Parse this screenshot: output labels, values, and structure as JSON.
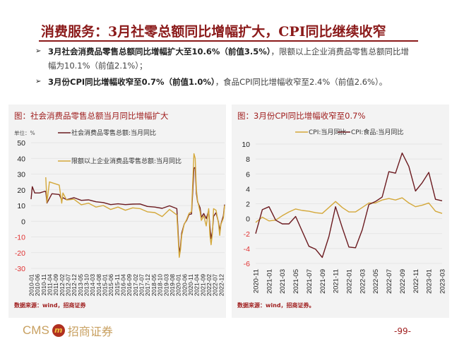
{
  "title": "消费服务：3月社零总额同比增幅扩大，CPI同比继续收窄",
  "bullets": [
    {
      "bold": "3月社会消费品零售总额同比增幅扩大至10.6%（前值3.5%）",
      "rest": "，限额以上企业消费品零售总额同比增幅为10.1%（前值2.1%）；"
    },
    {
      "bold": "3月份CPI同比增幅收窄至0.7%（前值1.0%）",
      "rest": "，食品CPI同比增幅收窄至2.4%（前值2.6%）。"
    }
  ],
  "bullet_marker": "➢",
  "colors": {
    "dark_red": "#6b1a1f",
    "gold": "#d4a83a",
    "title_red": "#8b1a1a"
  },
  "footer": {
    "logo_en": "CMS",
    "logo_mark": "m",
    "logo_cn": "招商证券",
    "page": "-99-"
  },
  "chart_data": [
    {
      "type": "line",
      "title": "图：社会消费品零售总额当月同比增幅扩大",
      "unit_label": "单位：%",
      "source": "数据来源：wind，招商证券",
      "ylim": [
        -30,
        50
      ],
      "yticks": [
        50,
        40,
        30,
        20,
        10,
        0,
        -10,
        -20,
        -30
      ],
      "grid": true,
      "legend": "top",
      "xlim": [
        "2010-01",
        "2023-03"
      ],
      "xticks": [
        "2010-01",
        "2010-06",
        "2010-11",
        "2011-04",
        "2011-09",
        "2012-02",
        "2012-07",
        "2012-12",
        "2013-05",
        "2013-10",
        "2014-03",
        "2014-08",
        "2015-01",
        "2015-06",
        "2015-11",
        "2016-04",
        "2016-09",
        "2017-02",
        "2017-07",
        "2017-12",
        "2018-05",
        "2018-10",
        "2019-03",
        "2019-08",
        "2020-01",
        "2020-06",
        "2020-11",
        "2021-04",
        "2021-09",
        "2022-02",
        "2022-07",
        "2022-12"
      ],
      "series": [
        {
          "name": "社会消费品零售总额:当月同比",
          "color": "#6b1a1f",
          "x": [
            "2010-01",
            "2010-02",
            "2010-04",
            "2010-08",
            "2010-12",
            "2011-01",
            "2011-02",
            "2011-06",
            "2011-12",
            "2012-02",
            "2012-03",
            "2012-06",
            "2012-12",
            "2013-06",
            "2013-12",
            "2014-06",
            "2014-12",
            "2015-06",
            "2015-12",
            "2016-06",
            "2016-12",
            "2017-06",
            "2017-12",
            "2018-06",
            "2018-12",
            "2019-06",
            "2019-12",
            "2020-02",
            "2020-03",
            "2020-04",
            "2020-06",
            "2020-08",
            "2020-10",
            "2020-12",
            "2021-02",
            "2021-03",
            "2021-04",
            "2021-05",
            "2021-07",
            "2021-08",
            "2021-10",
            "2021-12",
            "2022-02",
            "2022-03",
            "2022-04",
            "2022-05",
            "2022-06",
            "2022-08",
            "2022-10",
            "2022-11",
            "2022-12",
            "2023-02",
            "2023-03"
          ],
          "y": [
            14,
            22,
            18,
            18,
            19,
            19,
            11.6,
            17.5,
            17,
            13.5,
            15,
            13.7,
            15,
            13.3,
            13.6,
            12.4,
            11.9,
            10.6,
            11.1,
            10.6,
            10.9,
            11,
            9.4,
            9,
            8.2,
            9.8,
            8,
            -20.5,
            -15.8,
            -7.5,
            -1.8,
            0.5,
            4.3,
            4.6,
            33.8,
            34.2,
            17.7,
            12.4,
            8.5,
            2.5,
            4.9,
            1.7,
            6.7,
            -3.5,
            -11.1,
            -6.7,
            3.1,
            5.4,
            -0.5,
            -5.9,
            -1.8,
            3.5,
            10.6
          ]
        },
        {
          "name": "限额以上企业消费品零售总额:当月同比",
          "color": "#d4a83a",
          "x": [
            "2011-01",
            "2011-02",
            "2011-04",
            "2011-08",
            "2011-12",
            "2012-02",
            "2012-03",
            "2012-06",
            "2012-12",
            "2013-06",
            "2013-12",
            "2014-06",
            "2014-12",
            "2015-06",
            "2015-12",
            "2016-06",
            "2016-12",
            "2017-06",
            "2017-12",
            "2018-06",
            "2018-12",
            "2019-06",
            "2019-12",
            "2020-02",
            "2020-03",
            "2020-04",
            "2020-06",
            "2020-08",
            "2020-10",
            "2020-12",
            "2021-02",
            "2021-03",
            "2021-04",
            "2021-05",
            "2021-07",
            "2021-08",
            "2021-10",
            "2021-12",
            "2022-02",
            "2022-03",
            "2022-04",
            "2022-05",
            "2022-06",
            "2022-08",
            "2022-10",
            "2022-11",
            "2022-12",
            "2023-02",
            "2023-03"
          ],
          "y": [
            28,
            12,
            25,
            24,
            23,
            11.5,
            18,
            13.5,
            14,
            10.5,
            11.5,
            9,
            10,
            7.5,
            9,
            7,
            8.5,
            8,
            6,
            5.5,
            3,
            7.5,
            4,
            -23,
            -18,
            -9,
            -2,
            1,
            5,
            6,
            43,
            40,
            20,
            13,
            6,
            0.5,
            3.5,
            -3,
            8,
            -9,
            -15,
            -8,
            8,
            7,
            -1,
            -9,
            -2,
            2,
            10.1
          ]
        }
      ]
    },
    {
      "type": "line",
      "title": "图：3月份CPI同比增幅收窄至0.7%",
      "source": "数据来源：wind，招商证券。",
      "ylim": [
        -6,
        10
      ],
      "yticks": [
        10,
        8,
        6,
        4,
        2,
        0,
        -2,
        -4,
        -6
      ],
      "grid": true,
      "legend": "top",
      "x": [
        "2020-11",
        "2020-12",
        "2021-01",
        "2021-02",
        "2021-03",
        "2021-04",
        "2021-05",
        "2021-06",
        "2021-07",
        "2021-08",
        "2021-09",
        "2021-10",
        "2021-11",
        "2021-12",
        "2022-01",
        "2022-02",
        "2022-03",
        "2022-04",
        "2022-05",
        "2022-06",
        "2022-07",
        "2022-08",
        "2022-09",
        "2022-10",
        "2022-11",
        "2022-12",
        "2023-01",
        "2023-02",
        "2023-03"
      ],
      "xticks": [
        "2020-11",
        "2021-01",
        "2021-03",
        "2021-05",
        "2021-07",
        "2021-09",
        "2021-11",
        "2022-01",
        "2022-03",
        "2022-05",
        "2022-07",
        "2022-09",
        "2022-11",
        "2023-01",
        "2023-03"
      ],
      "series": [
        {
          "name": "CPI:当月同比",
          "color": "#d4a83a",
          "y": [
            -0.5,
            0.2,
            -0.3,
            -0.2,
            0.4,
            0.9,
            1.3,
            1.1,
            1.0,
            0.8,
            0.7,
            1.5,
            2.3,
            1.5,
            0.9,
            0.9,
            1.5,
            2.1,
            2.1,
            2.5,
            2.7,
            2.5,
            2.8,
            2.1,
            1.6,
            1.8,
            2.1,
            1.0,
            0.7
          ]
        },
        {
          "name": "CPI:食品:当月同比",
          "color": "#6b1a1f",
          "y": [
            -2.0,
            1.2,
            1.6,
            -0.2,
            -0.7,
            -0.7,
            0.3,
            -1.7,
            -3.7,
            -4.1,
            -5.2,
            -2.4,
            1.6,
            -1.2,
            -3.8,
            -3.9,
            -1.5,
            1.9,
            2.3,
            2.9,
            6.3,
            6.1,
            8.8,
            7.0,
            3.7,
            4.8,
            6.2,
            2.6,
            2.4
          ]
        }
      ]
    }
  ]
}
